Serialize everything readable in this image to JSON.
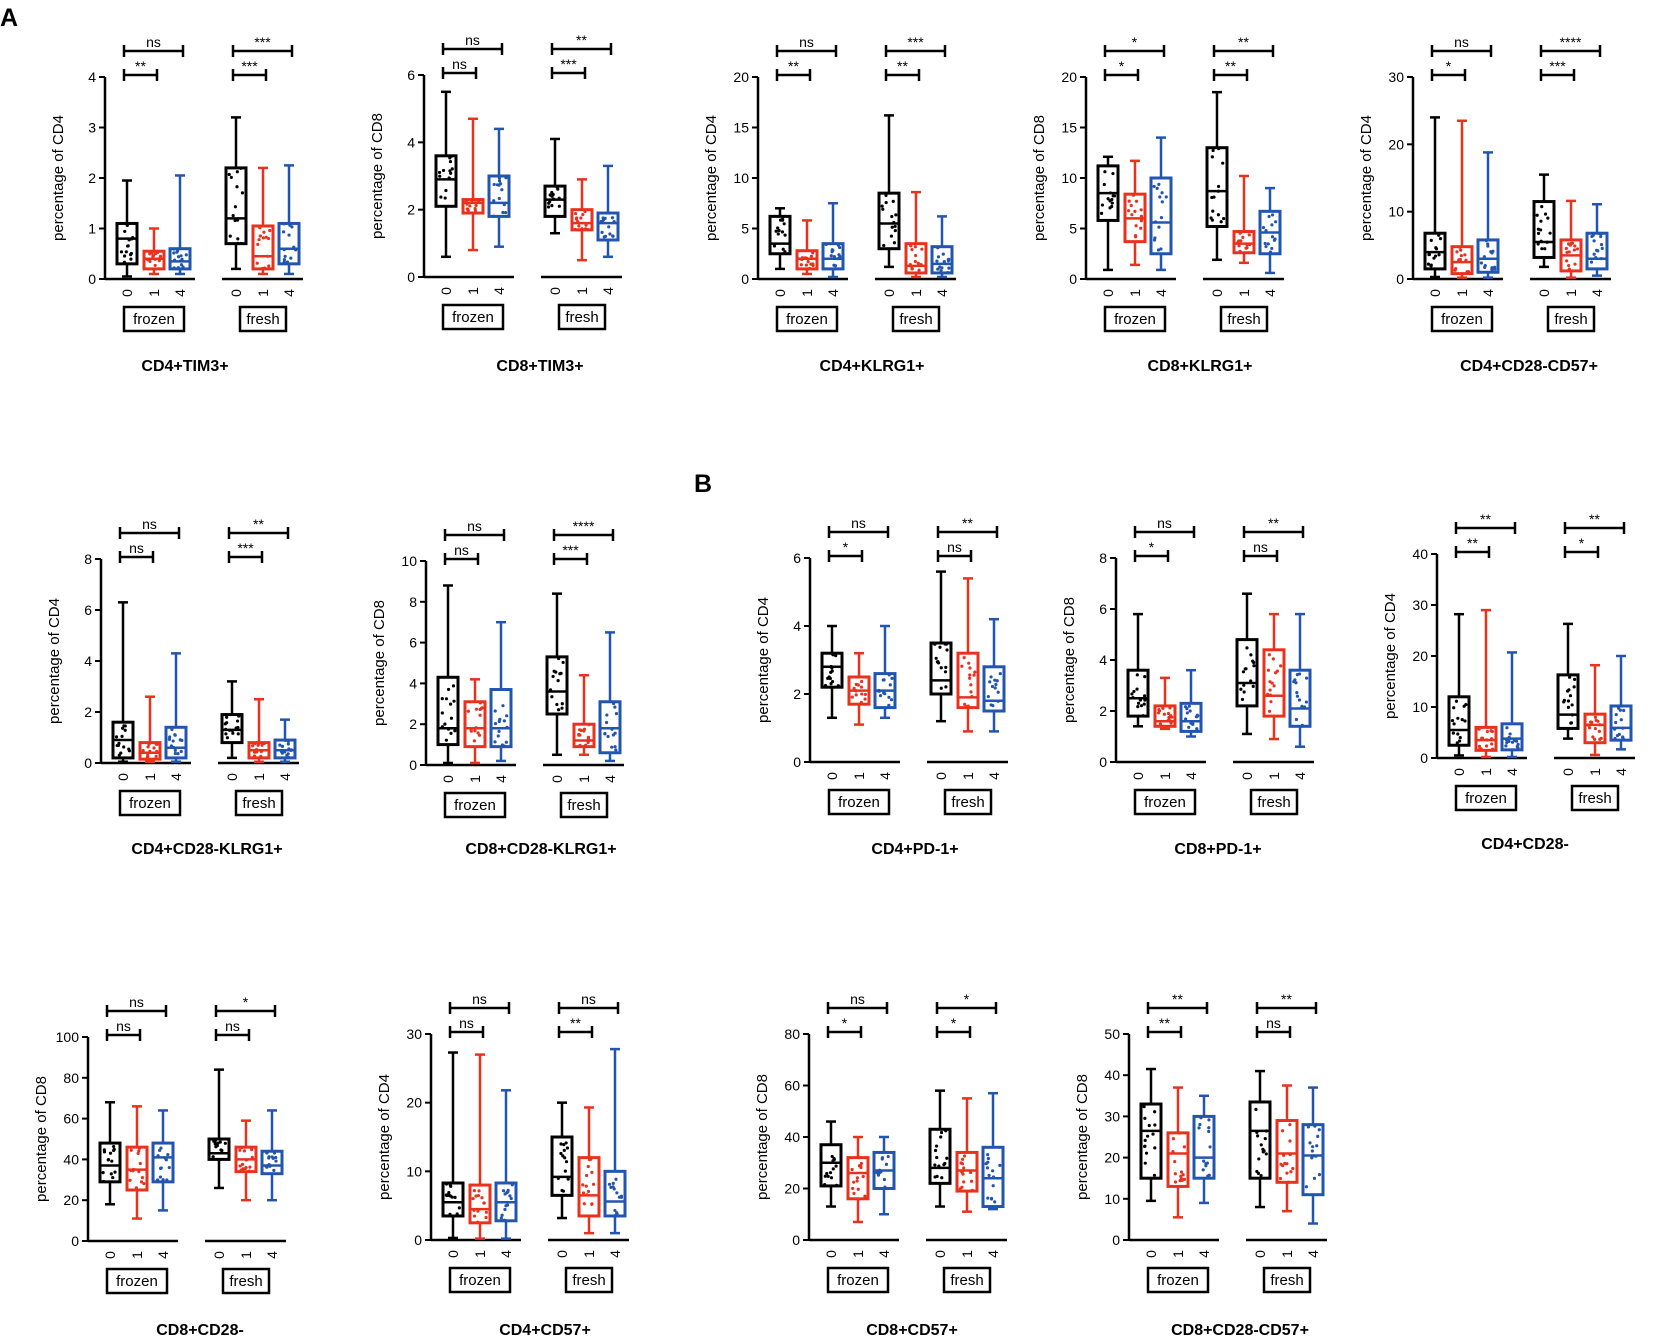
{
  "figure": {
    "panel_labels": [
      "A",
      "B"
    ],
    "groups": [
      "frozen",
      "fresh"
    ],
    "days": [
      "0",
      "1",
      "4"
    ],
    "colors": {
      "day0": "#000000",
      "day1": "#e8321e",
      "day4": "#2255b0"
    }
  },
  "chart_data": [
    {
      "type": "box",
      "title": "CD4+TIM3+",
      "ylabel": "percentage of CD4",
      "ylim": [
        0,
        4
      ],
      "yticks": [
        0,
        1,
        2,
        3,
        4
      ],
      "sig": [
        [
          "ns",
          "**"
        ],
        [
          "***",
          "***"
        ]
      ],
      "boxes": [
        [
          0.05,
          0.3,
          0.8,
          1.1,
          1.95
        ],
        [
          0.1,
          0.2,
          0.4,
          0.55,
          1.0
        ],
        [
          0.1,
          0.2,
          0.35,
          0.6,
          2.05
        ],
        [
          0.2,
          0.7,
          1.2,
          2.2,
          3.2
        ],
        [
          0.1,
          0.2,
          0.45,
          1.05,
          2.2
        ],
        [
          0.1,
          0.3,
          0.6,
          1.1,
          2.25
        ]
      ]
    },
    {
      "type": "box",
      "title": "CD8+TIM3+",
      "ylabel": "percentage of CD8",
      "ylim": [
        0,
        6
      ],
      "yticks": [
        0,
        2,
        4,
        6
      ],
      "sig": [
        [
          "ns",
          "ns"
        ],
        [
          "**",
          "***"
        ]
      ],
      "boxes": [
        [
          0.6,
          2.1,
          2.9,
          3.6,
          5.5
        ],
        [
          0.8,
          1.9,
          2.2,
          2.3,
          4.7
        ],
        [
          0.9,
          1.8,
          2.2,
          3.0,
          4.4
        ],
        [
          1.3,
          1.8,
          2.3,
          2.7,
          4.1
        ],
        [
          0.5,
          1.4,
          1.6,
          2.0,
          2.9
        ],
        [
          0.6,
          1.1,
          1.6,
          1.9,
          3.3
        ]
      ]
    },
    {
      "type": "box",
      "title": "CD4+KLRG1+",
      "ylabel": "percentage of CD4",
      "ylim": [
        0,
        20
      ],
      "yticks": [
        0,
        5,
        10,
        15,
        20
      ],
      "sig": [
        [
          "ns",
          "**"
        ],
        [
          "***",
          "**"
        ]
      ],
      "boxes": [
        [
          1.0,
          2.5,
          3.5,
          6.2,
          7.0
        ],
        [
          0.5,
          1.0,
          2.0,
          2.8,
          5.8
        ],
        [
          0.2,
          1.0,
          2.0,
          3.5,
          7.5
        ],
        [
          1.2,
          3.0,
          5.5,
          8.5,
          16.2
        ],
        [
          0.2,
          0.6,
          1.3,
          3.5,
          8.6
        ],
        [
          0.2,
          0.6,
          1.5,
          3.2,
          6.2
        ]
      ]
    },
    {
      "type": "box",
      "title": "CD8+KLRG1+",
      "ylabel": "percentage of CD8",
      "ylim": [
        0,
        20
      ],
      "yticks": [
        0,
        5,
        10,
        15,
        20
      ],
      "sig": [
        [
          "*",
          "*"
        ],
        [
          "**",
          "**"
        ]
      ],
      "boxes": [
        [
          0.9,
          5.8,
          8.5,
          11.2,
          12.1
        ],
        [
          1.4,
          3.7,
          6.0,
          8.4,
          11.7
        ],
        [
          0.9,
          2.5,
          5.6,
          10.0,
          14.0
        ],
        [
          1.9,
          5.2,
          8.7,
          13.0,
          18.5
        ],
        [
          1.6,
          2.6,
          3.5,
          4.7,
          10.2
        ],
        [
          0.6,
          2.5,
          4.6,
          6.7,
          9.0
        ]
      ]
    },
    {
      "type": "box",
      "title": "CD4+CD28-CD57+",
      "ylabel": "percentage of CD4",
      "ylim": [
        0,
        30
      ],
      "yticks": [
        0,
        10,
        20,
        30
      ],
      "sig": [
        [
          "ns",
          "*"
        ],
        [
          "****",
          "***"
        ]
      ],
      "boxes": [
        [
          0.3,
          1.5,
          4.0,
          6.8,
          24.0
        ],
        [
          0.2,
          0.8,
          2.5,
          4.8,
          23.5
        ],
        [
          0.2,
          1.0,
          3.0,
          5.8,
          18.8
        ],
        [
          1.8,
          3.2,
          5.5,
          11.5,
          15.5
        ],
        [
          0.2,
          1.2,
          3.5,
          5.8,
          11.6
        ],
        [
          0.5,
          1.5,
          3.0,
          6.8,
          11.1
        ]
      ]
    },
    {
      "type": "box",
      "title": "CD4+CD28-KLRG1+",
      "ylabel": "percentage of CD4",
      "ylim": [
        0,
        8
      ],
      "yticks": [
        0,
        2,
        4,
        6,
        8
      ],
      "sig": [
        [
          "ns",
          "ns"
        ],
        [
          "**",
          "***"
        ]
      ],
      "boxes": [
        [
          0.05,
          0.2,
          0.9,
          1.6,
          6.3
        ],
        [
          0.05,
          0.15,
          0.4,
          0.8,
          2.6
        ],
        [
          0.05,
          0.2,
          0.6,
          1.4,
          4.3
        ],
        [
          0.2,
          0.8,
          1.3,
          1.9,
          3.2
        ],
        [
          0.05,
          0.2,
          0.5,
          0.8,
          2.5
        ],
        [
          0.05,
          0.2,
          0.5,
          0.9,
          1.7
        ]
      ]
    },
    {
      "type": "box",
      "title": "CD8+CD28-KLRG1+",
      "ylabel": "percentage of CD8",
      "ylim": [
        0,
        10
      ],
      "yticks": [
        0,
        2,
        4,
        6,
        8,
        10
      ],
      "sig": [
        [
          "ns",
          "ns"
        ],
        [
          "****",
          "***"
        ]
      ],
      "boxes": [
        [
          0.1,
          1.0,
          1.8,
          4.3,
          8.8
        ],
        [
          0.1,
          0.9,
          1.8,
          3.1,
          4.2
        ],
        [
          0.2,
          0.9,
          1.8,
          3.7,
          7.0
        ],
        [
          0.5,
          2.5,
          3.6,
          5.3,
          8.4
        ],
        [
          0.5,
          0.9,
          1.2,
          2.0,
          4.4
        ],
        [
          0.2,
          0.6,
          1.8,
          3.1,
          6.5
        ]
      ]
    },
    {
      "type": "box",
      "title": "CD4+PD-1+",
      "ylabel": "percentage of CD4",
      "ylim": [
        0,
        6
      ],
      "yticks": [
        0,
        2,
        4,
        6
      ],
      "sig": [
        [
          "ns",
          "*"
        ],
        [
          "**",
          "ns"
        ]
      ],
      "boxes": [
        [
          1.3,
          2.2,
          2.8,
          3.2,
          4.0
        ],
        [
          1.1,
          1.7,
          2.1,
          2.5,
          3.2
        ],
        [
          1.3,
          1.6,
          2.1,
          2.6,
          4.0
        ],
        [
          1.2,
          2.0,
          2.4,
          3.5,
          5.6
        ],
        [
          0.9,
          1.6,
          1.9,
          3.2,
          5.4
        ],
        [
          0.9,
          1.5,
          1.8,
          2.8,
          4.2
        ]
      ]
    },
    {
      "type": "box",
      "title": "CD8+PD-1+",
      "ylabel": "percentage of CD8",
      "ylim": [
        0,
        8
      ],
      "yticks": [
        0,
        2,
        4,
        6,
        8
      ],
      "sig": [
        [
          "ns",
          "*"
        ],
        [
          "**",
          "ns"
        ]
      ],
      "boxes": [
        [
          1.4,
          1.8,
          2.5,
          3.6,
          5.8
        ],
        [
          1.3,
          1.4,
          1.6,
          2.2,
          3.3
        ],
        [
          1.0,
          1.2,
          1.6,
          2.3,
          3.6
        ],
        [
          1.1,
          2.2,
          3.1,
          4.8,
          6.6
        ],
        [
          0.9,
          1.8,
          2.6,
          4.4,
          5.8
        ],
        [
          0.6,
          1.4,
          2.1,
          3.6,
          5.8
        ]
      ]
    },
    {
      "type": "box",
      "title": "CD4+CD28-",
      "ylabel": "percentage of CD4",
      "ylim": [
        0,
        40
      ],
      "yticks": [
        0,
        10,
        20,
        30,
        40
      ],
      "sig": [
        [
          "**",
          "**"
        ],
        [
          "**",
          "*"
        ]
      ],
      "boxes": [
        [
          0.5,
          2.5,
          5.5,
          12.0,
          28.2
        ],
        [
          0.2,
          1.5,
          3.5,
          6.0,
          29.0
        ],
        [
          0.2,
          1.6,
          3.8,
          6.7,
          20.7
        ],
        [
          3.8,
          5.8,
          8.5,
          16.3,
          26.3
        ],
        [
          0.6,
          3.0,
          6.5,
          8.6,
          18.2
        ],
        [
          1.7,
          3.5,
          5.9,
          10.2,
          20.0
        ]
      ]
    },
    {
      "type": "box",
      "title": "CD8+CD28-",
      "ylabel": "percentage of CD8",
      "ylim": [
        0,
        100
      ],
      "yticks": [
        0,
        20,
        40,
        60,
        80,
        100
      ],
      "sig": [
        [
          "ns",
          "ns"
        ],
        [
          "*",
          "ns"
        ]
      ],
      "boxes": [
        [
          18.0,
          29.0,
          37.0,
          48.0,
          68.0
        ],
        [
          11.0,
          25.0,
          35.0,
          46.0,
          66.0
        ],
        [
          15.0,
          29.0,
          41.0,
          48.0,
          64.0
        ],
        [
          26.0,
          40.0,
          43.0,
          50.0,
          84.0
        ],
        [
          20.0,
          34.0,
          40.0,
          46.0,
          59.0
        ],
        [
          20.0,
          33.0,
          37.0,
          44.0,
          64.0
        ]
      ]
    },
    {
      "type": "box",
      "title": "CD4+CD57+",
      "ylabel": "percentage of CD4",
      "ylim": [
        0,
        30
      ],
      "yticks": [
        0,
        10,
        20,
        30
      ],
      "sig": [
        [
          "ns",
          "ns"
        ],
        [
          "ns",
          "**"
        ]
      ],
      "boxes": [
        [
          0.3,
          3.5,
          5.5,
          8.3,
          27.3
        ],
        [
          0.2,
          2.5,
          4.5,
          8.0,
          27.0
        ],
        [
          0.2,
          2.8,
          5.5,
          8.3,
          21.8
        ],
        [
          3.2,
          6.5,
          9.2,
          15.0,
          20.0
        ],
        [
          1.0,
          3.5,
          6.5,
          12.0,
          19.3
        ],
        [
          1.0,
          3.5,
          5.6,
          10.0,
          27.8
        ]
      ]
    },
    {
      "type": "box",
      "title": "CD8+CD57+",
      "ylabel": "percentage of CD8",
      "ylim": [
        0,
        80
      ],
      "yticks": [
        0,
        20,
        40,
        60,
        80
      ],
      "sig": [
        [
          "ns",
          "*"
        ],
        [
          "*",
          "*"
        ]
      ],
      "boxes": [
        [
          13.0,
          21.0,
          30.0,
          37.0,
          46.0
        ],
        [
          7.0,
          16.0,
          26.0,
          32.0,
          40.0
        ],
        [
          10.0,
          20.0,
          27.0,
          34.0,
          40.0
        ],
        [
          13.0,
          22.0,
          28.0,
          43.0,
          58.0
        ],
        [
          11.0,
          19.0,
          27.0,
          34.0,
          55.0
        ],
        [
          12.0,
          13.0,
          24.0,
          36.0,
          57.0
        ]
      ]
    },
    {
      "type": "box",
      "title": "CD8+CD28-CD57+",
      "ylabel": "percentage of CD8",
      "ylim": [
        0,
        50
      ],
      "yticks": [
        0,
        10,
        20,
        30,
        40,
        50
      ],
      "sig": [
        [
          "**",
          "**"
        ],
        [
          "**",
          "ns"
        ]
      ],
      "boxes": [
        [
          9.5,
          15.0,
          26.5,
          33.0,
          41.5
        ],
        [
          5.5,
          13.0,
          21.0,
          26.0,
          37.0
        ],
        [
          9.0,
          15.0,
          20.0,
          30.0,
          35.0
        ],
        [
          8.0,
          15.0,
          26.5,
          33.5,
          41.0
        ],
        [
          7.0,
          14.0,
          21.0,
          29.0,
          37.5
        ],
        [
          4.0,
          11.0,
          20.5,
          28.0,
          37.0
        ]
      ]
    }
  ]
}
